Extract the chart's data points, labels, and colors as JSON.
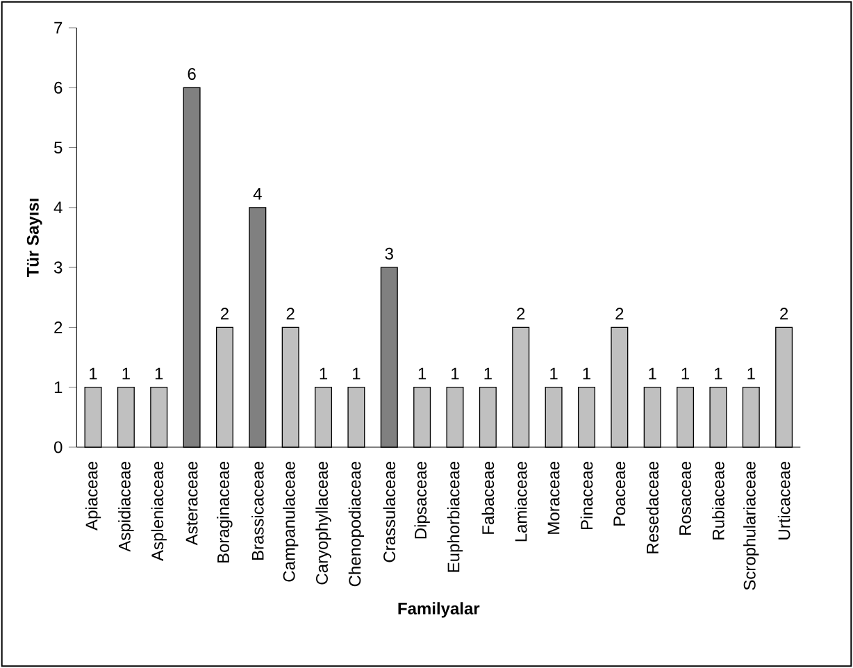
{
  "chart_data": {
    "type": "bar",
    "categories": [
      "Apiaceae",
      "Aspidiaceae",
      "Aspleniaceae",
      "Asteraceae",
      "Boraginaceae",
      "Brassicaceae",
      "Campanulaceae",
      "Caryophyllaceae",
      "Chenopodiaceae",
      "Crassulaceae",
      "Dipsaceae",
      "Euphorbiaceae",
      "Fabaceae",
      "Lamiaceae",
      "Moraceae",
      "Pinaceae",
      "Poaceae",
      "Resedaceae",
      "Rosaceae",
      "Rubiaceae",
      "Scrophulariaceae",
      "Urticaceae"
    ],
    "values": [
      1,
      1,
      1,
      6,
      2,
      4,
      2,
      1,
      1,
      3,
      1,
      1,
      1,
      2,
      1,
      1,
      2,
      1,
      1,
      1,
      1,
      2
    ],
    "colors": [
      "#c0c0c0",
      "#c0c0c0",
      "#c0c0c0",
      "#808080",
      "#c0c0c0",
      "#808080",
      "#c0c0c0",
      "#c0c0c0",
      "#c0c0c0",
      "#808080",
      "#c0c0c0",
      "#c0c0c0",
      "#c0c0c0",
      "#c0c0c0",
      "#c0c0c0",
      "#c0c0c0",
      "#c0c0c0",
      "#c0c0c0",
      "#c0c0c0",
      "#c0c0c0",
      "#c0c0c0",
      "#c0c0c0"
    ],
    "ylim": [
      0,
      7
    ],
    "yticks": [
      0,
      1,
      2,
      3,
      4,
      5,
      6,
      7
    ],
    "xlabel": "Familyalar",
    "ylabel": "Tür Sayısı",
    "data_labels": true
  }
}
